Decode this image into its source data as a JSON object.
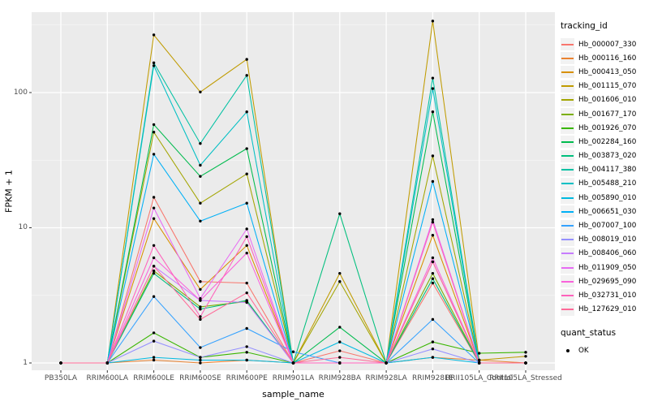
{
  "figure": {
    "bg": "#FFFFFF",
    "panel_bg": "#EBEBEB",
    "grid_major": "#FFFFFF",
    "grid_minor": "#F5F5F5",
    "tick_color": "#333333",
    "tick_label_color": "#4D4D4D",
    "point_color": "#000000"
  },
  "axes": {
    "x_title": "sample_name",
    "y_title": "FPKM + 1",
    "y_tick_labels": [
      "1",
      "10",
      "100"
    ],
    "y_tick_values": [
      1,
      10,
      100
    ]
  },
  "legend": {
    "title": "tracking_id"
  },
  "legend2": {
    "title": "quant_status",
    "items": [
      {
        "label": "OK",
        "marker": "black-point"
      }
    ]
  },
  "chart_data": {
    "type": "line",
    "title": "",
    "xlabel": "sample_name",
    "ylabel": "FPKM + 1",
    "y_scale": "log10",
    "ylim": [
      0.88,
      400
    ],
    "grid": true,
    "legend_position": "right",
    "marker": "black-point",
    "categories": [
      "PB350LA",
      "RRIM600LA",
      "RRIM600LE",
      "RRIM600SE",
      "RRIM600PE",
      "RRIM901LA",
      "RRIM928BA",
      "RRIM928LA",
      "RRIM928LE",
      "RRII105LA_Control",
      "RRII105LA_Stressed"
    ],
    "series": [
      {
        "name": "Hb_000007_330",
        "color": "#F8766D",
        "values": [
          1,
          1,
          16.8,
          4.0,
          3.9,
          1,
          1.23,
          1,
          3.9,
          1,
          1
        ]
      },
      {
        "name": "Hb_000116_160",
        "color": "#EA8331",
        "values": [
          1,
          1,
          1.05,
          1,
          1.05,
          1,
          1,
          1,
          1.1,
          1.05,
          1
        ]
      },
      {
        "name": "Hb_000413_050",
        "color": "#D89000",
        "values": [
          1,
          1,
          11.7,
          3.5,
          7.4,
          1,
          1,
          1,
          8.8,
          1,
          1
        ]
      },
      {
        "name": "Hb_001115_070",
        "color": "#C09B00",
        "values": [
          1,
          1,
          267,
          101,
          176,
          1,
          4.6,
          1,
          338,
          1.05,
          1.12
        ]
      },
      {
        "name": "Hb_001606_010",
        "color": "#A3A500",
        "values": [
          1,
          1,
          51,
          15.2,
          25,
          1,
          4.0,
          1,
          34,
          1,
          1
        ]
      },
      {
        "name": "Hb_001677_170",
        "color": "#7CAE00",
        "values": [
          1,
          1,
          4.8,
          2.6,
          2.85,
          1,
          1,
          1,
          4.6,
          1,
          1
        ]
      },
      {
        "name": "Hb_001926_070",
        "color": "#39B600",
        "values": [
          1,
          1,
          1.67,
          1.1,
          1.2,
          1,
          1,
          1,
          1.43,
          1.18,
          1.2
        ]
      },
      {
        "name": "Hb_002284_160",
        "color": "#00BB4E",
        "values": [
          1,
          1,
          58,
          24,
          38.5,
          1,
          1.84,
          1,
          72,
          1,
          1
        ]
      },
      {
        "name": "Hb_003873_020",
        "color": "#00BF7D",
        "values": [
          1,
          1,
          4.6,
          2.5,
          2.9,
          1,
          12.7,
          1,
          4.2,
          1,
          1
        ]
      },
      {
        "name": "Hb_004117_380",
        "color": "#00C1A3",
        "values": [
          1,
          1,
          166,
          42,
          134,
          1,
          1,
          1,
          128,
          1,
          1
        ]
      },
      {
        "name": "Hb_005488_210",
        "color": "#00BFC4",
        "values": [
          1,
          1,
          158,
          29,
          72,
          1,
          1,
          1,
          107,
          1,
          1
        ]
      },
      {
        "name": "Hb_005890_010",
        "color": "#00BAE0",
        "values": [
          1,
          1,
          1.1,
          1.05,
          1.05,
          1,
          1.43,
          1,
          1.1,
          1,
          1
        ]
      },
      {
        "name": "Hb_006651_030",
        "color": "#00B0F6",
        "values": [
          1,
          1,
          35,
          11.2,
          15.2,
          1,
          1,
          1,
          22,
          1,
          1
        ]
      },
      {
        "name": "Hb_007007_100",
        "color": "#35A2FF",
        "values": [
          1,
          1,
          3.1,
          1.3,
          1.8,
          1.21,
          1,
          1,
          2.1,
          1,
          1
        ]
      },
      {
        "name": "Hb_008019_010",
        "color": "#9590FF",
        "values": [
          1,
          1,
          1.45,
          1.1,
          1.32,
          1,
          1,
          1,
          1.27,
          1,
          1
        ]
      },
      {
        "name": "Hb_008406_060",
        "color": "#C77CFF",
        "values": [
          1,
          1,
          5.2,
          2.9,
          2.8,
          1,
          1,
          1,
          5.6,
          1,
          1
        ]
      },
      {
        "name": "Hb_011909_050",
        "color": "#E76BF3",
        "values": [
          1,
          1,
          14,
          3.0,
          9.8,
          1,
          1,
          1,
          11.5,
          1,
          1
        ]
      },
      {
        "name": "Hb_029695_090",
        "color": "#FA62DB",
        "values": [
          1,
          1,
          6.0,
          2.9,
          6.5,
          1,
          1,
          1,
          6.0,
          1,
          1
        ]
      },
      {
        "name": "Hb_032731_010",
        "color": "#FF62BC",
        "values": [
          1,
          1,
          7.4,
          2.2,
          8.6,
          1,
          1,
          1,
          11,
          1,
          1
        ]
      },
      {
        "name": "Hb_127629_010",
        "color": "#FF6A98",
        "values": [
          1,
          1,
          5.2,
          2.1,
          3.3,
          1,
          1.1,
          1,
          5.6,
          1,
          1
        ]
      }
    ]
  }
}
